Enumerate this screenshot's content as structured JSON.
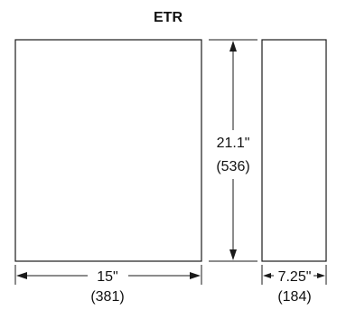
{
  "title": "ETR",
  "dimensions": {
    "height": {
      "inches": "21.1\"",
      "mm": "(536)"
    },
    "width": {
      "inches": "15\"",
      "mm": "(381)"
    },
    "depth": {
      "inches": "7.25\"",
      "mm": "(184)"
    }
  }
}
